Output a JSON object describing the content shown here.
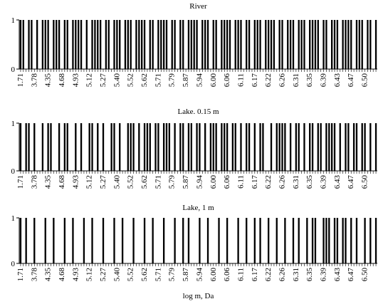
{
  "chart_data": [
    {
      "type": "bar",
      "title": "River",
      "categories": [
        "1.71",
        null,
        null,
        null,
        null,
        "3.78",
        null,
        null,
        null,
        null,
        "4.35",
        null,
        null,
        null,
        null,
        "4.68",
        null,
        null,
        null,
        null,
        "4.93",
        null,
        null,
        null,
        null,
        "5.12",
        null,
        null,
        null,
        null,
        "5.27",
        null,
        null,
        null,
        null,
        "5.40",
        null,
        null,
        null,
        null,
        "5.52",
        null,
        null,
        null,
        null,
        "5.62",
        null,
        null,
        null,
        null,
        "5.71",
        null,
        null,
        null,
        null,
        "5.79",
        null,
        null,
        null,
        null,
        "5.87",
        null,
        null,
        null,
        null,
        "5.94",
        null,
        null,
        null,
        null,
        "6.00",
        null,
        null,
        null,
        null,
        "6.06",
        null,
        null,
        null,
        null,
        "6.11",
        null,
        null,
        null,
        null,
        "6.17",
        null,
        null,
        null,
        null,
        "6.22",
        null,
        null,
        null,
        null,
        "6.26",
        null,
        null,
        null,
        null,
        "6.31",
        null,
        null,
        null,
        null,
        "6.35",
        null,
        null,
        null,
        null,
        "6.39",
        null,
        null,
        null,
        null,
        "6.43",
        null,
        null,
        null,
        null,
        "6.47",
        null,
        null,
        null,
        null,
        "6.50",
        null,
        null,
        null,
        null
      ],
      "values": [
        1,
        1,
        0,
        1,
        1,
        0,
        1,
        0,
        1,
        1,
        1,
        0,
        1,
        1,
        1,
        0,
        1,
        1,
        0,
        1,
        1,
        1,
        1,
        0,
        1,
        0,
        1,
        1,
        1,
        1,
        0,
        1,
        1,
        0,
        1,
        1,
        1,
        0,
        1,
        1,
        1,
        0,
        1,
        1,
        1,
        1,
        0,
        1,
        1,
        0,
        1,
        1,
        1,
        1,
        0,
        1,
        1,
        0,
        1,
        1,
        0,
        1,
        1,
        1,
        1,
        0,
        1,
        1,
        1,
        0,
        1,
        1,
        0,
        1,
        1,
        1,
        1,
        0,
        1,
        1,
        1,
        0,
        1,
        1,
        0,
        1,
        1,
        1,
        0,
        1,
        1,
        1,
        1,
        0,
        1,
        1,
        0,
        1,
        1,
        1,
        0,
        1,
        1,
        1,
        0,
        1,
        1,
        1,
        1,
        0,
        1,
        1,
        0,
        1,
        1,
        1,
        0,
        1,
        1,
        1,
        1,
        0,
        1,
        1,
        1,
        0,
        1,
        1,
        0,
        1
      ],
      "color": "#000000",
      "ylim": [
        0,
        1
      ],
      "yticks": [
        0,
        1
      ]
    },
    {
      "type": "bar",
      "title": "Lake. 0.15 m",
      "categories": [
        "1.71",
        null,
        null,
        null,
        null,
        "3.78",
        null,
        null,
        null,
        null,
        "4.35",
        null,
        null,
        null,
        null,
        "4.68",
        null,
        null,
        null,
        null,
        "4.93",
        null,
        null,
        null,
        null,
        "5.12",
        null,
        null,
        null,
        null,
        "5.27",
        null,
        null,
        null,
        null,
        "5.40",
        null,
        null,
        null,
        null,
        "5.52",
        null,
        null,
        null,
        null,
        "5.62",
        null,
        null,
        null,
        null,
        "5.71",
        null,
        null,
        null,
        null,
        "5.79",
        null,
        null,
        null,
        null,
        "5.87",
        null,
        null,
        null,
        null,
        "5.94",
        null,
        null,
        null,
        null,
        "6.00",
        null,
        null,
        null,
        null,
        "6.06",
        null,
        null,
        null,
        null,
        "6.11",
        null,
        null,
        null,
        null,
        "6.17",
        null,
        null,
        null,
        null,
        "6.22",
        null,
        null,
        null,
        null,
        "6.26",
        null,
        null,
        null,
        null,
        "6.31",
        null,
        null,
        null,
        null,
        "6.35",
        null,
        null,
        null,
        null,
        "6.39",
        null,
        null,
        null,
        null,
        "6.43",
        null,
        null,
        null,
        null,
        "6.47",
        null,
        null,
        null,
        null,
        "6.50",
        null,
        null,
        null,
        null
      ],
      "values": [
        1,
        0,
        1,
        1,
        0,
        1,
        0,
        0,
        1,
        0,
        1,
        1,
        0,
        0,
        1,
        0,
        1,
        1,
        0,
        0,
        1,
        0,
        1,
        0,
        0,
        1,
        1,
        0,
        1,
        0,
        1,
        0,
        0,
        1,
        1,
        0,
        1,
        0,
        0,
        1,
        1,
        1,
        0,
        1,
        0,
        1,
        1,
        1,
        0,
        1,
        1,
        0,
        1,
        1,
        1,
        0,
        1,
        0,
        1,
        1,
        0,
        1,
        1,
        0,
        1,
        1,
        0,
        1,
        0,
        1,
        1,
        1,
        0,
        1,
        1,
        1,
        0,
        1,
        1,
        0,
        1,
        0,
        1,
        1,
        0,
        1,
        0,
        1,
        1,
        0,
        0,
        1,
        0,
        1,
        1,
        1,
        1,
        0,
        1,
        0,
        1,
        1,
        0,
        1,
        0,
        1,
        1,
        0,
        1,
        1,
        0,
        1,
        1,
        1,
        1,
        0,
        1,
        0,
        1,
        1,
        0,
        1,
        1,
        0,
        1,
        1,
        0,
        1,
        0,
        1
      ],
      "color": "#000000",
      "ylim": [
        0,
        1
      ],
      "yticks": [
        0,
        1
      ]
    },
    {
      "type": "bar",
      "title": "Lake, 1 m",
      "x_label": "log m, Da",
      "categories": [
        "1.71",
        null,
        null,
        null,
        null,
        "3.78",
        null,
        null,
        null,
        null,
        "4.35",
        null,
        null,
        null,
        null,
        "4.68",
        null,
        null,
        null,
        null,
        "4.93",
        null,
        null,
        null,
        null,
        "5.12",
        null,
        null,
        null,
        null,
        "5.27",
        null,
        null,
        null,
        null,
        "5.40",
        null,
        null,
        null,
        null,
        "5.52",
        null,
        null,
        null,
        null,
        "5.62",
        null,
        null,
        null,
        null,
        "5.71",
        null,
        null,
        null,
        null,
        "5.79",
        null,
        null,
        null,
        null,
        "5.87",
        null,
        null,
        null,
        null,
        "5.94",
        null,
        null,
        null,
        null,
        "6.00",
        null,
        null,
        null,
        null,
        "6.06",
        null,
        null,
        null,
        null,
        "6.11",
        null,
        null,
        null,
        null,
        "6.17",
        null,
        null,
        null,
        null,
        "6.22",
        null,
        null,
        null,
        null,
        "6.26",
        null,
        null,
        null,
        null,
        "6.31",
        null,
        null,
        null,
        null,
        "6.35",
        null,
        null,
        null,
        null,
        "6.39",
        null,
        null,
        null,
        null,
        "6.43",
        null,
        null,
        null,
        null,
        "6.47",
        null,
        null,
        null,
        null,
        "6.50",
        null,
        null,
        null,
        null
      ],
      "values": [
        1,
        0,
        1,
        0,
        0,
        1,
        0,
        0,
        0,
        1,
        0,
        0,
        1,
        0,
        0,
        0,
        1,
        0,
        0,
        1,
        0,
        0,
        0,
        1,
        0,
        0,
        1,
        0,
        0,
        0,
        1,
        0,
        0,
        0,
        1,
        0,
        0,
        1,
        0,
        0,
        0,
        1,
        0,
        0,
        0,
        1,
        0,
        0,
        1,
        0,
        0,
        0,
        1,
        0,
        0,
        0,
        1,
        0,
        0,
        1,
        0,
        1,
        0,
        0,
        0,
        1,
        0,
        0,
        1,
        0,
        0,
        0,
        1,
        0,
        0,
        1,
        0,
        0,
        0,
        1,
        0,
        0,
        1,
        0,
        0,
        1,
        0,
        1,
        0,
        0,
        1,
        0,
        0,
        1,
        0,
        0,
        1,
        0,
        0,
        1,
        0,
        1,
        0,
        0,
        1,
        0,
        1,
        1,
        0,
        0,
        1,
        1,
        1,
        0,
        1,
        1,
        0,
        1,
        1,
        0,
        1,
        0,
        1,
        0,
        0,
        1,
        0,
        1,
        0,
        1
      ],
      "color": "#000000",
      "ylim": [
        0,
        1
      ],
      "yticks": [
        0,
        1
      ]
    }
  ]
}
